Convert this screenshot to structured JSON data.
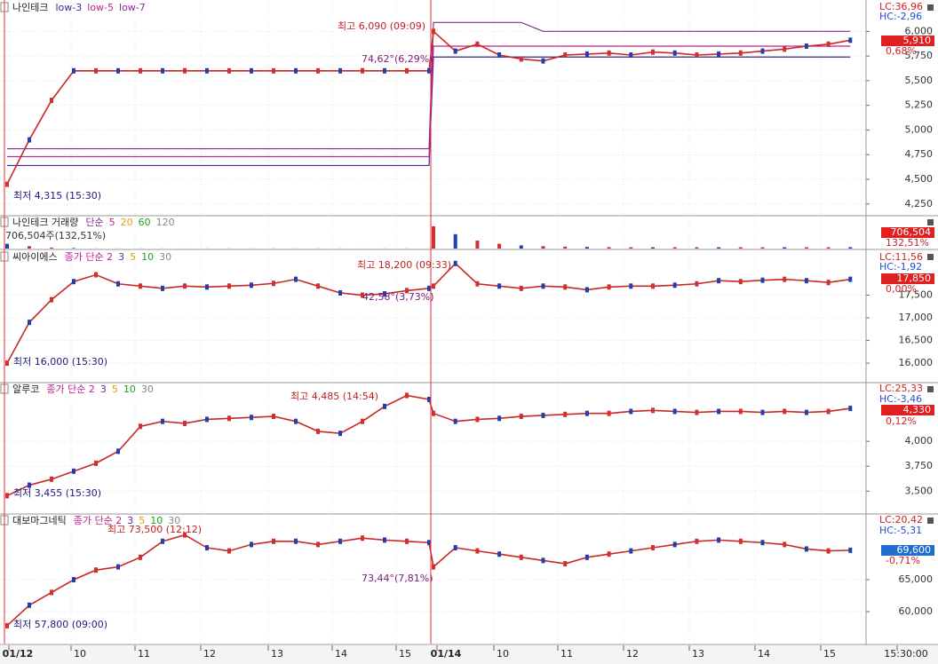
{
  "panels": [
    {
      "title": "나인테크",
      "legend": [
        {
          "name": "low-3",
          "color": "#3b2a9a",
          "values": [
            4640,
            4640,
            4640,
            4640,
            4640,
            4640,
            4640,
            4640,
            4640,
            4640,
            4640,
            4640,
            4640,
            4640,
            4640,
            4640,
            4640,
            4640,
            4640,
            4640,
            5740,
            5740,
            5740,
            5740,
            5740,
            5740,
            5740,
            5740,
            5740,
            5740,
            5740,
            5740,
            5740,
            5740,
            5740,
            5740,
            5740,
            5740,
            5740,
            5740
          ]
        },
        {
          "name": "low-5",
          "color": "#c0208f",
          "values": [
            4730,
            4730,
            4730,
            4730,
            4730,
            4730,
            4730,
            4730,
            4730,
            4730,
            4730,
            4730,
            4730,
            4730,
            4730,
            4730,
            4730,
            4730,
            4730,
            4730,
            5850,
            5850,
            5850,
            5850,
            5850,
            5850,
            5850,
            5850,
            5850,
            5850,
            5850,
            5850,
            5850,
            5850,
            5850,
            5850,
            5850,
            5850,
            5850,
            5850
          ]
        },
        {
          "name": "low-7",
          "color": "#8a2a9a",
          "values": [
            4810,
            4810,
            4810,
            4810,
            4810,
            4810,
            4810,
            4810,
            4810,
            4810,
            4810,
            4810,
            4810,
            4810,
            4810,
            4810,
            4810,
            4810,
            4810,
            4810,
            6090,
            6090,
            6090,
            6090,
            6090,
            6000,
            6000,
            6000,
            6000,
            6000,
            6000,
            6000,
            6000,
            6000,
            6000,
            6000,
            6000,
            6000,
            6000,
            6000
          ]
        }
      ],
      "ylim": [
        4140,
        6300
      ],
      "yticks": [
        {
          "value": 4250,
          "label": "4,250"
        },
        {
          "value": 4500,
          "label": "4,500"
        },
        {
          "value": 4750,
          "label": "4,750"
        },
        {
          "value": 5000,
          "label": "5,000"
        },
        {
          "value": 5250,
          "label": "5,250"
        },
        {
          "value": 5500,
          "label": "5,500"
        },
        {
          "value": 5750,
          "label": "5,750"
        },
        {
          "value": 6000,
          "label": "6,000"
        }
      ],
      "values": [
        4450,
        4900,
        5300,
        5600,
        5600,
        5600,
        5600,
        5600,
        5600,
        5600,
        5600,
        5600,
        5600,
        5600,
        5600,
        5600,
        5600,
        5600,
        5600,
        5600,
        6000,
        5800,
        5870,
        5760,
        5720,
        5700,
        5760,
        5770,
        5780,
        5760,
        5790,
        5780,
        5760,
        5770,
        5780,
        5800,
        5820,
        5850,
        5870,
        5910
      ],
      "annotations": [
        "최고 6,090 (09:09)",
        "74,62°(6,29%)",
        "최저 4,315 (15:30)"
      ],
      "side": {
        "lc": "LC:36,96",
        "hc": "HC:-2,96",
        "price": "5,910",
        "price_color": "#e02020",
        "change": "0,68%"
      }
    },
    {
      "title": "나인테크 거래량",
      "legend": [
        {
          "name": "단순",
          "color": "#8a2a9a"
        },
        {
          "name": "5",
          "color": "#c0208f"
        },
        {
          "name": "20",
          "color": "#e0a000"
        },
        {
          "name": "60",
          "color": "#20a020"
        },
        {
          "name": "120",
          "color": "#888888"
        }
      ],
      "ylim": [
        0,
        2000000
      ],
      "volumes": [
        300000,
        150000,
        60000,
        30000,
        5000,
        5000,
        5000,
        5000,
        5000,
        5000,
        5000,
        5000,
        5000,
        5000,
        5000,
        5000,
        5000,
        5000,
        5000,
        5000,
        1400000,
        900000,
        500000,
        300000,
        200000,
        150000,
        120000,
        100000,
        90000,
        80000,
        80000,
        80000,
        80000,
        80000,
        80000,
        80000,
        80000,
        80000,
        80000,
        90000
      ],
      "annotations": [
        "706,504주(132,51%)"
      ],
      "side": {
        "price": "706,504",
        "price_color": "#e02020",
        "change": "132,51%"
      }
    },
    {
      "title": "씨아이에스",
      "legend": [
        {
          "name": "종가 단순 2",
          "color": "#c0208f"
        },
        {
          "name": "3",
          "color": "#6a2a9a"
        },
        {
          "name": "5",
          "color": "#e0a000"
        },
        {
          "name": "10",
          "color": "#20a020"
        },
        {
          "name": "30",
          "color": "#888888"
        }
      ],
      "ylim": [
        15590,
        18470
      ],
      "yticks": [
        {
          "value": 16000,
          "label": "16,000"
        },
        {
          "value": 16500,
          "label": "16,500"
        },
        {
          "value": 17000,
          "label": "17,000"
        },
        {
          "value": 17500,
          "label": "17,500"
        }
      ],
      "values": [
        16000,
        16900,
        17400,
        17800,
        17950,
        17750,
        17700,
        17650,
        17700,
        17680,
        17700,
        17720,
        17760,
        17850,
        17700,
        17550,
        17500,
        17530,
        17600,
        17650,
        17700,
        18200,
        17750,
        17700,
        17650,
        17700,
        17680,
        17620,
        17680,
        17700,
        17700,
        17720,
        17750,
        17820,
        17800,
        17830,
        17850,
        17820,
        17780,
        17850
      ],
      "annotations": [
        "최고 18,200 (09:33)",
        "42,58°(3,73%)",
        "최저 16,000 (15:30)"
      ],
      "side": {
        "lc": "LC:11,56",
        "hc": "HC:-1,92",
        "price": "17,850",
        "price_color": "#e02020",
        "change": "0,00%"
      }
    },
    {
      "title": "알루코",
      "legend": [
        {
          "name": "종가 단순 2",
          "color": "#c0208f"
        },
        {
          "name": "3",
          "color": "#6a2a9a"
        },
        {
          "name": "5",
          "color": "#e0a000"
        },
        {
          "name": "10",
          "color": "#20a020"
        },
        {
          "name": "30",
          "color": "#888888"
        }
      ],
      "ylim": [
        3280,
        4580
      ],
      "yticks": [
        {
          "value": 3500,
          "label": "3,500"
        },
        {
          "value": 3750,
          "label": "3,750"
        },
        {
          "value": 4000,
          "label": "4,000"
        }
      ],
      "values": [
        3455,
        3560,
        3620,
        3700,
        3780,
        3900,
        4150,
        4200,
        4180,
        4220,
        4230,
        4240,
        4250,
        4200,
        4100,
        4080,
        4200,
        4350,
        4460,
        4420,
        4280,
        4200,
        4220,
        4230,
        4250,
        4260,
        4270,
        4280,
        4280,
        4300,
        4310,
        4300,
        4290,
        4300,
        4300,
        4290,
        4300,
        4290,
        4300,
        4330
      ],
      "annotations": [
        "최고 4,485 (14:54)",
        "최저 3,455 (15:30)"
      ],
      "side": {
        "lc": "LC:25,33",
        "hc": "HC:-3,46",
        "price": "4,330",
        "price_color": "#e02020",
        "change": "0,12%"
      }
    },
    {
      "title": "대보마그네틱",
      "legend": [
        {
          "name": "종가 단순 2",
          "color": "#c0208f"
        },
        {
          "name": "3",
          "color": "#6a2a9a"
        },
        {
          "name": "5",
          "color": "#e0a000"
        },
        {
          "name": "10",
          "color": "#20a020"
        },
        {
          "name": "30",
          "color": "#888888"
        }
      ],
      "ylim": [
        55000,
        75140
      ],
      "yticks": [
        {
          "value": 60000,
          "label": "60,000"
        },
        {
          "value": 65000,
          "label": "65,000"
        }
      ],
      "values": [
        57800,
        61000,
        63000,
        65000,
        66500,
        67000,
        68500,
        71000,
        72000,
        70000,
        69500,
        70500,
        71000,
        71000,
        70500,
        71000,
        71500,
        71200,
        71000,
        70800,
        67000,
        70000,
        69500,
        69000,
        68500,
        68000,
        67500,
        68500,
        69000,
        69500,
        70000,
        70500,
        71000,
        71200,
        71000,
        70800,
        70500,
        69800,
        69500,
        69600
      ],
      "annotations": [
        "최고 73,500 (12:12)",
        "73,44°(7,81%)",
        "최저 57,800 (09:00)"
      ],
      "side": {
        "lc": "LC:20,42",
        "hc": "HC:-5,31",
        "price": "69,600",
        "price_color": "#1f6fd0",
        "change": "-0,71%"
      }
    }
  ],
  "x_labels": [
    "01/12",
    "10",
    "11",
    "12",
    "13",
    "14",
    "15",
    "01/14",
    "10",
    "11",
    "12",
    "13",
    "14",
    "15",
    "15:30:00"
  ]
}
